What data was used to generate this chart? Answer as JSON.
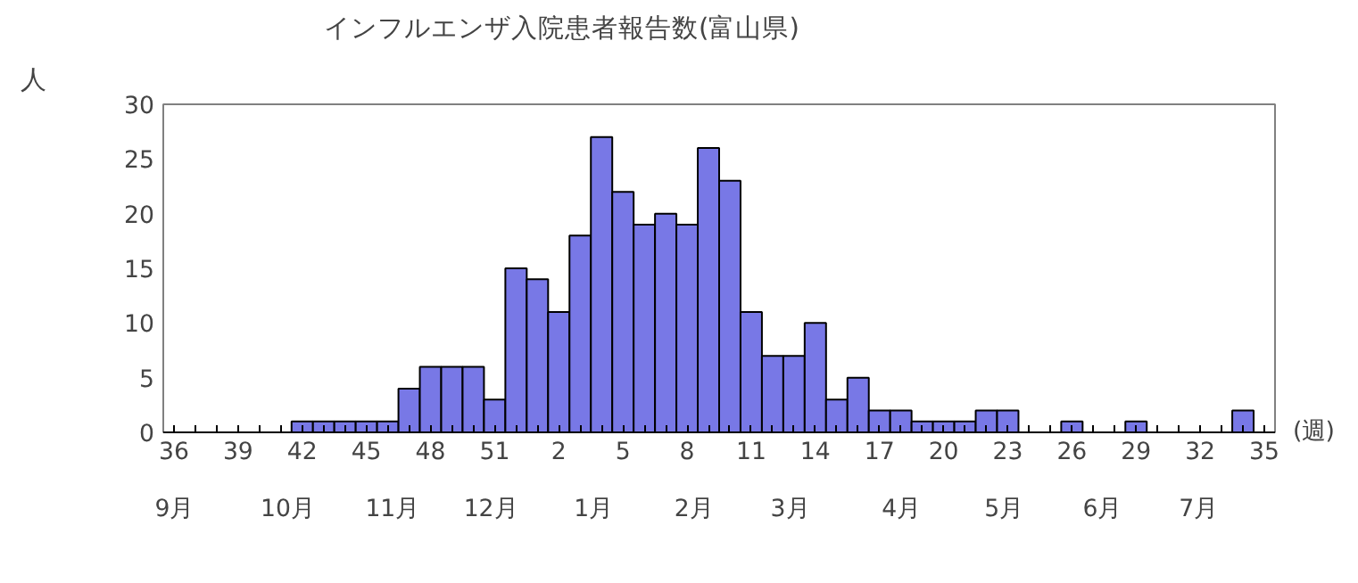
{
  "chart_data": {
    "type": "bar",
    "title": "インフルエンザ入院患者報告数(富山県)",
    "ylabel": "人",
    "xlabel": "(週)",
    "categories": [
      "36",
      null,
      null,
      "39",
      null,
      null,
      "42",
      null,
      null,
      "45",
      null,
      null,
      "48",
      null,
      null,
      "51",
      null,
      null,
      "2",
      null,
      null,
      "5",
      null,
      null,
      "8",
      null,
      null,
      "11",
      null,
      null,
      "14",
      null,
      null,
      "17",
      null,
      null,
      "20",
      null,
      null,
      "23",
      null,
      null,
      "26",
      null,
      null,
      "29",
      null,
      null,
      "32",
      null,
      null,
      "35"
    ],
    "values": [
      0,
      0,
      0,
      0,
      0,
      0,
      1,
      1,
      1,
      1,
      1,
      4,
      6,
      6,
      6,
      3,
      15,
      14,
      11,
      18,
      27,
      22,
      19,
      20,
      19,
      26,
      23,
      11,
      7,
      7,
      10,
      3,
      5,
      2,
      2,
      1,
      1,
      1,
      2,
      2,
      0,
      0,
      1,
      0,
      0,
      1,
      0,
      0,
      0,
      0,
      2,
      0
    ],
    "color": "#7878e6",
    "ylim": [
      0,
      30
    ],
    "yticks": [
      0,
      5,
      10,
      15,
      20,
      25,
      30
    ],
    "grid": false,
    "annotations": [
      "9月",
      "10月",
      "11月",
      "12月",
      "1月",
      "2月",
      "3月",
      "4月",
      "5月",
      "6月",
      "7月"
    ]
  }
}
